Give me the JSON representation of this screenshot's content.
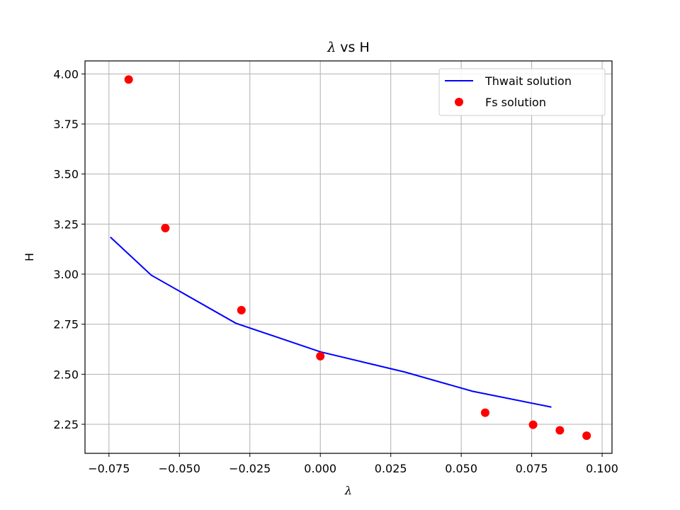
{
  "chart_data": {
    "type": "line",
    "title_symbol": "λ",
    "title_rest": " vs H",
    "xlabel": "λ",
    "ylabel": "H",
    "xlim": [
      -0.0835,
      0.1035
    ],
    "ylim": [
      2.105,
      4.065
    ],
    "xticks": [
      -0.075,
      -0.05,
      -0.025,
      0.0,
      0.025,
      0.05,
      0.075,
      0.1
    ],
    "xtick_labels": [
      "−0.075",
      "−0.050",
      "−0.025",
      "0.000",
      "0.025",
      "0.050",
      "0.075",
      "0.100"
    ],
    "yticks": [
      2.25,
      2.5,
      2.75,
      3.0,
      3.25,
      3.5,
      3.75,
      4.0
    ],
    "ytick_labels": [
      "2.25",
      "2.50",
      "2.75",
      "3.00",
      "3.25",
      "3.50",
      "3.75",
      "4.00"
    ],
    "grid": true,
    "legend_position": "top-right",
    "series": [
      {
        "name": "Thwait solution",
        "style": "line",
        "color": "#0000ff",
        "points": [
          [
            -0.0745,
            3.185
          ],
          [
            -0.06,
            2.995
          ],
          [
            -0.03,
            2.755
          ],
          [
            0.0,
            2.612
          ],
          [
            0.03,
            2.511
          ],
          [
            0.054,
            2.415
          ],
          [
            0.082,
            2.336
          ]
        ]
      },
      {
        "name": "Fs solution",
        "style": "marker",
        "color": "#ff0000",
        "points": [
          [
            -0.068,
            3.972
          ],
          [
            -0.055,
            3.23
          ],
          [
            -0.028,
            2.82
          ],
          [
            0.0,
            2.59
          ],
          [
            0.0585,
            2.308
          ],
          [
            0.0755,
            2.248
          ],
          [
            0.085,
            2.22
          ],
          [
            0.0945,
            2.193
          ]
        ]
      }
    ]
  }
}
